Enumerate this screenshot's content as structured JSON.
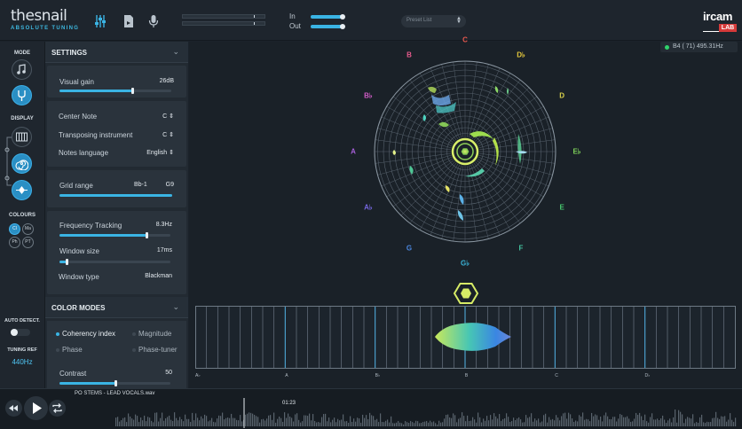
{
  "app": {
    "logo_main": "thesnail",
    "logo_sub": "ABSOLUTE TUNING",
    "brand_top": "ircam",
    "brand_bottom": "LAB"
  },
  "header": {
    "icons": [
      "mixer-sliders-icon",
      "file-icon",
      "microphone-icon"
    ],
    "in_label": "In",
    "out_label": "Out",
    "in_level": 0.95,
    "out_level": 0.95,
    "preset_placeholder": "Preset List"
  },
  "sidebar": {
    "mode_label": "MODE",
    "display_label": "DISPLAY",
    "colours_label": "COLOURS",
    "colour_buttons": [
      "Cl",
      "Ma",
      "Ph",
      "PT"
    ],
    "auto_detect_label": "AUTO DETECT.",
    "auto_detect_on": false,
    "tuning_ref_label": "TUNING REF",
    "tuning_ref_value": "440Hz"
  },
  "settings": {
    "title": "SETTINGS",
    "visual_gain_label": "Visual gain",
    "visual_gain_value": "26dB",
    "visual_gain_level": 0.65,
    "center_note_label": "Center Note",
    "center_note_value": "C",
    "transposing_label": "Transposing instrument",
    "transposing_value": "C",
    "notes_language_label": "Notes language",
    "notes_language_value": "English",
    "grid_range_label": "Grid range",
    "grid_range_low": "Bb-1",
    "grid_range_high": "G9",
    "grid_range_level": [
      0.0,
      1.0
    ],
    "freq_tracking_label": "Frequency Tracking",
    "freq_tracking_value": "8.3Hz",
    "freq_tracking_level": 0.78,
    "window_size_label": "Window size",
    "window_size_value": "17ms",
    "window_size_level": 0.06,
    "window_type_label": "Window type",
    "window_type_value": "Blackman"
  },
  "color_modes": {
    "title": "COLOR MODES",
    "options": [
      "Coherency index",
      "Magnitude",
      "Phase",
      "Phase-tuner"
    ],
    "selected": "Coherency index",
    "contrast_label": "Contrast",
    "contrast_value": "50",
    "contrast_level": 0.5
  },
  "main_view": {
    "frequency_readout": "B4 ( 71) 495.31Hz",
    "note_labels": [
      "C",
      "D♭",
      "D",
      "E♭",
      "E",
      "F",
      "G♭",
      "G",
      "A♭",
      "A",
      "B♭",
      "B"
    ],
    "note_colors": [
      "#e8584e",
      "#e6c93c",
      "#d9d14a",
      "#7fd35a",
      "#47c96e",
      "#44c3a0",
      "#3bb4d8",
      "#4b87e0",
      "#7567e0",
      "#a65fd8",
      "#d05cc6",
      "#e55a8c"
    ],
    "keyboard_labels": [
      "A♭",
      "A",
      "B♭",
      "B",
      "C",
      "D♭"
    ]
  },
  "transport": {
    "track_name": "PO STEMS - LEAD VOCALS.wav",
    "time": "01:23",
    "position": 0.26
  }
}
